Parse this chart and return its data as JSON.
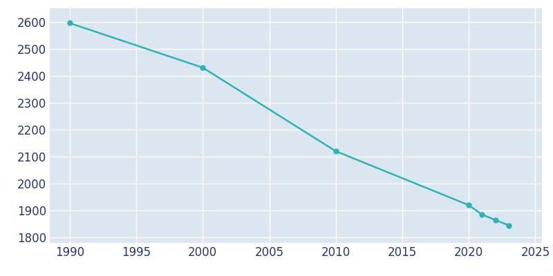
{
  "years": [
    1990,
    2000,
    2010,
    2020,
    2021,
    2022,
    2023
  ],
  "population": [
    2595,
    2430,
    2120,
    1920,
    1885,
    1865,
    1845
  ],
  "line_color": "#29b5b5",
  "marker_color": "#29b5b5",
  "fig_background_color": "#ffffff",
  "plot_background_color": "#dce6f0",
  "grid_color": "#ffffff",
  "xlabel": "",
  "ylabel": "",
  "xlim": [
    1988.5,
    2025.5
  ],
  "ylim": [
    1780,
    2650
  ],
  "yticks": [
    1800,
    1900,
    2000,
    2100,
    2200,
    2300,
    2400,
    2500,
    2600
  ],
  "xticks": [
    1990,
    1995,
    2000,
    2005,
    2010,
    2015,
    2020,
    2025
  ],
  "tick_label_color": "#253570",
  "tick_fontsize": 12,
  "line_width": 1.8,
  "marker_size": 5
}
